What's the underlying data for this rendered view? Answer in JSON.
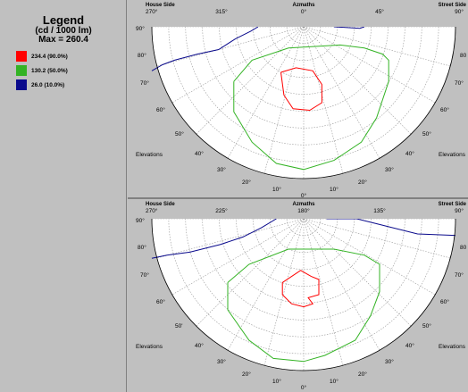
{
  "legend": {
    "title": "Legend",
    "units": "(cd / 1000 lm)",
    "max_label": "Max = 260.4",
    "items": [
      {
        "label": "234.4  (90.0%)",
        "color": "#ff0000"
      },
      {
        "label": "130.2  (50.0%)",
        "color": "#33b324"
      },
      {
        "label": "26.0  (10.0%)",
        "color": "#0a0a8c"
      }
    ]
  },
  "chart_data": [
    {
      "type": "polar-isocandela",
      "labels": {
        "house_side": "House Side",
        "street_side": "Street Side",
        "azimuths": "Azmaths",
        "left_elevations": "Elevations",
        "right_elevations": "Elevations"
      },
      "azimuth_ticks": [
        "270°",
        "315°",
        "0°",
        "45°",
        "90°"
      ],
      "elevation_ticks_left": [
        "90°",
        "80°",
        "70°",
        "60°",
        "50°",
        "40°",
        "30°",
        "20°",
        "10°"
      ],
      "elevation_ticks_right": [
        "80",
        "70°",
        "60°",
        "50°",
        "40°",
        "30°",
        "20°",
        "10°"
      ],
      "bottom_tick": "0°",
      "series": [
        {
          "color": "#ff0000",
          "points": [
            [
              -0.15,
              0.7
            ],
            [
              -0.05,
              0.73
            ],
            [
              0.06,
              0.71
            ],
            [
              0.12,
              0.62
            ],
            [
              0.12,
              0.5
            ],
            [
              0.04,
              0.45
            ],
            [
              -0.07,
              0.46
            ],
            [
              -0.13,
              0.55
            ],
            [
              -0.15,
              0.7
            ]
          ]
        },
        {
          "color": "#33b324",
          "points": [
            [
              -0.46,
              0.64
            ],
            [
              -0.34,
              0.78
            ],
            [
              -0.1,
              0.86
            ],
            [
              0.24,
              0.88
            ],
            [
              0.4,
              0.86
            ],
            [
              0.52,
              0.82
            ],
            [
              0.56,
              0.78
            ],
            [
              0.56,
              0.64
            ],
            [
              0.48,
              0.4
            ],
            [
              0.38,
              0.24
            ],
            [
              0.2,
              0.12
            ],
            [
              0.0,
              0.06
            ],
            [
              -0.18,
              0.1
            ],
            [
              -0.34,
              0.24
            ],
            [
              -0.46,
              0.44
            ],
            [
              -0.46,
              0.64
            ]
          ]
        },
        {
          "color": "#0a0a8c",
          "points": [
            [
              -1.0,
              0.71
            ],
            [
              -0.93,
              0.75
            ],
            [
              -0.85,
              0.78
            ],
            [
              -0.7,
              0.82
            ],
            [
              -0.56,
              0.85
            ],
            [
              -0.45,
              0.92
            ],
            [
              -0.35,
              0.97
            ],
            [
              -0.3,
              1.0
            ]
          ],
          "points2": [
            [
              0.2,
              1.0
            ],
            [
              0.37,
              0.99
            ],
            [
              0.4,
              1.0
            ]
          ]
        }
      ]
    },
    {
      "type": "polar-isocandela",
      "labels": {
        "house_side": "House Side",
        "street_side": "Street Side",
        "azimuths": "Azmaths",
        "left_elevations": "Elevations",
        "right_elevations": "Elevations"
      },
      "azimuth_ticks": [
        "270°",
        "225°",
        "180°",
        "135°",
        "90°"
      ],
      "elevation_ticks_left": [
        "90°",
        "80°",
        "70°",
        "60°",
        "50'",
        "40°",
        "30°",
        "20°",
        "10°"
      ],
      "elevation_ticks_right": [
        "80",
        "70°",
        "60°",
        "50°",
        "40°",
        "30°",
        "20°",
        "10°"
      ],
      "bottom_tick": "0°",
      "series": [
        {
          "color": "#ff0000",
          "points": [
            [
              -0.14,
              0.58
            ],
            [
              -0.02,
              0.66
            ],
            [
              0.05,
              0.62
            ],
            [
              0.1,
              0.6
            ],
            [
              0.1,
              0.5
            ],
            [
              0.03,
              0.48
            ],
            [
              0.06,
              0.44
            ],
            [
              0.0,
              0.42
            ],
            [
              -0.08,
              0.44
            ],
            [
              -0.14,
              0.5
            ],
            [
              -0.14,
              0.58
            ]
          ]
        },
        {
          "color": "#33b324",
          "points": [
            [
              -0.5,
              0.58
            ],
            [
              -0.36,
              0.7
            ],
            [
              -0.1,
              0.8
            ],
            [
              0.2,
              0.8
            ],
            [
              0.4,
              0.76
            ],
            [
              0.5,
              0.7
            ],
            [
              0.5,
              0.52
            ],
            [
              0.44,
              0.36
            ],
            [
              0.34,
              0.2
            ],
            [
              0.14,
              0.1
            ],
            [
              0.0,
              0.06
            ],
            [
              -0.2,
              0.08
            ],
            [
              -0.36,
              0.2
            ],
            [
              -0.5,
              0.4
            ],
            [
              -0.5,
              0.58
            ]
          ]
        },
        {
          "color": "#0a0a8c",
          "points": [
            [
              -1.0,
              0.74
            ],
            [
              -0.9,
              0.76
            ],
            [
              -0.75,
              0.78
            ],
            [
              -0.55,
              0.83
            ],
            [
              -0.4,
              0.88
            ],
            [
              -0.28,
              0.94
            ],
            [
              -0.18,
              1.0
            ]
          ],
          "points2": [
            [
              0.15,
              1.0
            ],
            [
              0.35,
              1.0
            ],
            [
              0.55,
              0.95
            ],
            [
              0.75,
              0.9
            ],
            [
              1.0,
              0.89
            ]
          ]
        }
      ]
    }
  ]
}
